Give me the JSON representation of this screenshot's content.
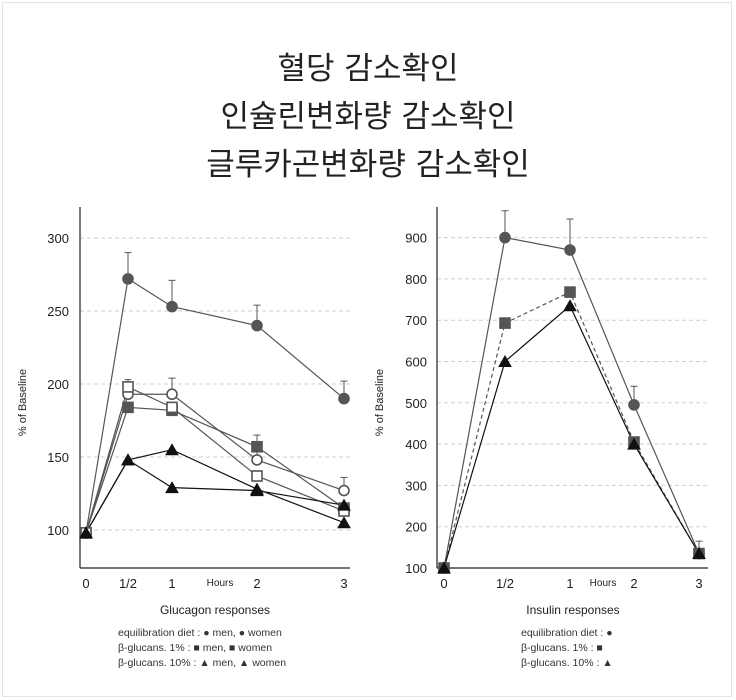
{
  "titles": [
    "혈당 감소확인",
    "인슐린변화량 감소확인",
    "글루카곤변화량 감소확인"
  ],
  "chart_data": [
    {
      "type": "line",
      "name": "glucagon",
      "xlabel": "Glucagon responses",
      "ylabel": "% of Baseline",
      "x_unit_label": "Hours",
      "x_ticks": [
        {
          "value": 0,
          "label": "0"
        },
        {
          "value": 0.5,
          "label": "1/2"
        },
        {
          "value": 1,
          "label": "1"
        },
        {
          "value": 2,
          "label": "2"
        },
        {
          "value": 3,
          "label": "3"
        }
      ],
      "ylim": [
        75,
        300
      ],
      "yticks": [
        100,
        150,
        200,
        250,
        300
      ],
      "grid": "horizontal dashed",
      "series": [
        {
          "marker": "circle",
          "fill": "filled",
          "color": "#555555",
          "dash": false,
          "x": [
            0,
            0.5,
            1,
            2,
            3
          ],
          "y": [
            98,
            272,
            253,
            240,
            190
          ],
          "error_bars": [
            0,
            18,
            18,
            14,
            12
          ]
        },
        {
          "marker": "circle",
          "fill": "open",
          "color": "#555555",
          "dash": false,
          "x": [
            0,
            0.5,
            1,
            2,
            3
          ],
          "y": [
            98,
            193,
            193,
            148,
            127
          ],
          "error_bars": [
            0,
            10,
            11,
            8,
            9
          ]
        },
        {
          "marker": "square",
          "fill": "filled",
          "color": "#555555",
          "dash": false,
          "x": [
            0,
            0.5,
            1,
            2,
            3
          ],
          "y": [
            98,
            184,
            182,
            157,
            115
          ],
          "error_bars": [
            0,
            0,
            0,
            8,
            0
          ]
        },
        {
          "marker": "square",
          "fill": "open",
          "color": "#555555",
          "dash": false,
          "x": [
            0,
            0.5,
            1,
            2,
            3
          ],
          "y": [
            98,
            198,
            184,
            137,
            113
          ],
          "error_bars": [
            0,
            0,
            0,
            0,
            0
          ]
        },
        {
          "marker": "triangle",
          "fill": "filled",
          "color": "#111111",
          "dash": false,
          "x": [
            0,
            0.5,
            1,
            2,
            3
          ],
          "y": [
            98,
            148,
            155,
            128,
            105
          ],
          "error_bars": [
            0,
            0,
            0,
            0,
            0
          ]
        },
        {
          "marker": "triangle",
          "fill": "filled",
          "color": "#111111",
          "dash": false,
          "x": [
            0,
            0.5,
            1,
            2,
            3
          ],
          "y": [
            98,
            148,
            129,
            127,
            117
          ],
          "error_bars": [
            0,
            0,
            0,
            0,
            0
          ]
        }
      ],
      "legend": [
        {
          "prefix": "equilibration diet :",
          "items": [
            "● men,",
            "● women"
          ]
        },
        {
          "prefix": "β-glucans.      1% :",
          "items": [
            "■ men,",
            "■ women"
          ]
        },
        {
          "prefix": "β-glucans.    10% :",
          "items": [
            "▲ men,",
            "▲ women"
          ]
        }
      ]
    },
    {
      "type": "line",
      "name": "insulin",
      "xlabel": "Insulin responses",
      "ylabel": "% of Baseline",
      "x_unit_label": "Hours",
      "x_ticks": [
        {
          "value": 0,
          "label": "0"
        },
        {
          "value": 0.5,
          "label": "1/2"
        },
        {
          "value": 1,
          "label": "1"
        },
        {
          "value": 2,
          "label": "2"
        },
        {
          "value": 3,
          "label": "3"
        }
      ],
      "ylim": [
        100,
        900
      ],
      "yticks": [
        100,
        200,
        300,
        400,
        500,
        600,
        700,
        800,
        900
      ],
      "grid": "horizontal dashed",
      "series": [
        {
          "marker": "circle",
          "fill": "filled",
          "color": "#555555",
          "dash": false,
          "x": [
            0,
            0.5,
            1,
            2,
            3
          ],
          "y": [
            100,
            900,
            870,
            495,
            135
          ],
          "error_bars": [
            0,
            65,
            75,
            45,
            30
          ]
        },
        {
          "marker": "square",
          "fill": "filled",
          "color": "#555555",
          "dash": true,
          "x": [
            0,
            0.5,
            1,
            2,
            3
          ],
          "y": [
            100,
            693,
            768,
            405,
            135
          ],
          "error_bars": [
            0,
            0,
            0,
            0,
            0
          ]
        },
        {
          "marker": "triangle",
          "fill": "filled",
          "color": "#111111",
          "dash": false,
          "x": [
            0,
            0.5,
            1,
            2,
            3
          ],
          "y": [
            100,
            600,
            735,
            400,
            135
          ],
          "error_bars": [
            0,
            0,
            0,
            0,
            0
          ]
        }
      ],
      "legend": [
        {
          "prefix": "equilibration diet :",
          "items": [
            "●"
          ]
        },
        {
          "prefix": "β-glucans.      1% :",
          "items": [
            "■"
          ]
        },
        {
          "prefix": "β-glucans.    10% :",
          "items": [
            "▲"
          ]
        }
      ]
    }
  ]
}
